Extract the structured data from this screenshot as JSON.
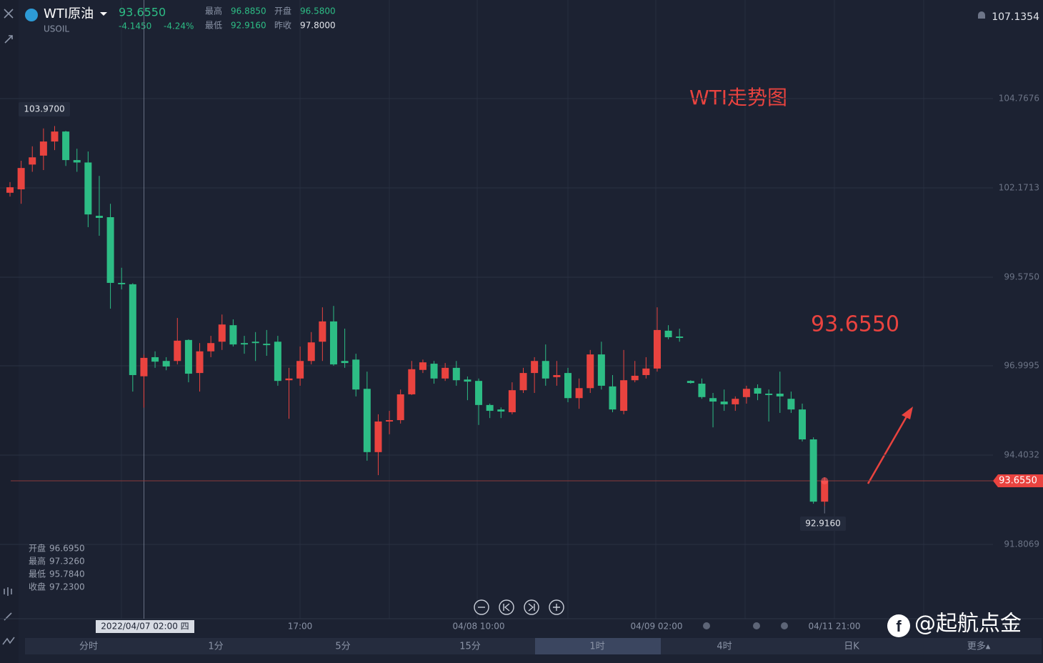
{
  "chart_data": {
    "type": "candlestick",
    "title": "WTI走势图",
    "up_color": "#e9433f",
    "down_color": "#2dbd85",
    "ylim": [
      89.647,
      107.634
    ],
    "yticks": [
      104.7676,
      102.1713,
      {
        "value": 99.575,
        "label": "99.5750"
      },
      96.9995,
      94.4032,
      91.8069
    ],
    "grid": true,
    "open": [
      102.03,
      102.13,
      102.85,
      103.11,
      103.52,
      103.81,
      102.98,
      102.91,
      101.36,
      101.32,
      99.41,
      99.37,
      96.695,
      97.25,
      97.14,
      97.14,
      97.75,
      96.79,
      97.42,
      97.7,
      98.18,
      97.66,
      97.7,
      97.64,
      97.7,
      96.58,
      96.63,
      97.14,
      97.7,
      98.29,
      97.14,
      97.18,
      96.33,
      94.49,
      95.38,
      95.42,
      96.17,
      96.88,
      97.06,
      96.63,
      96.94,
      96.6,
      96.56,
      95.86,
      95.73,
      95.65,
      96.29,
      96.79,
      97.14,
      96.67,
      96.79,
      96.06,
      96.35,
      97.33,
      96.4,
      95.69,
      96.58,
      96.73,
      96.92,
      98.02,
      97.85,
      96.56,
      96.48,
      96.06,
      95.96,
      95.88,
      96.09,
      96.35,
      96.19,
      96.19,
      96.04,
      95.73,
      94.86,
      93.05
    ],
    "high": [
      102.34,
      102.96,
      103.38,
      103.9,
      103.97,
      103.83,
      103.31,
      103.23,
      102.52,
      101.71,
      99.85,
      99.4,
      97.326,
      97.42,
      97.25,
      98.39,
      97.77,
      97.66,
      97.87,
      98.49,
      98.35,
      97.87,
      97.98,
      98.04,
      97.87,
      96.94,
      97.56,
      97.98,
      98.7,
      98.74,
      98.08,
      97.35,
      96.83,
      95.59,
      95.69,
      96.31,
      97.14,
      97.18,
      97.14,
      97.08,
      97.14,
      96.69,
      96.63,
      95.9,
      95.79,
      96.52,
      96.94,
      97.25,
      97.62,
      97.14,
      96.94,
      96.63,
      97.46,
      97.7,
      96.73,
      97.46,
      97.14,
      97.25,
      98.7,
      98.18,
      98.08,
      96.58,
      96.63,
      96.21,
      96.31,
      96.11,
      96.42,
      96.46,
      96.31,
      96.83,
      96.25,
      95.9,
      94.92,
      93.76
    ],
    "low": [
      101.92,
      101.71,
      102.64,
      102.69,
      103.27,
      102.81,
      102.64,
      101.03,
      100.78,
      98.66,
      99.22,
      96.25,
      95.784,
      96.94,
      96.87,
      97.04,
      96.52,
      96.25,
      97.25,
      97.46,
      97.56,
      97.35,
      97.14,
      97.29,
      96.42,
      95.46,
      96.42,
      97.04,
      97.14,
      97.0,
      96.94,
      96.11,
      94.24,
      93.82,
      95.01,
      95.32,
      96.15,
      96.79,
      96.48,
      96.56,
      96.42,
      96.0,
      95.28,
      95.48,
      95.48,
      95.59,
      96.21,
      96.21,
      96.42,
      96.42,
      95.94,
      95.75,
      96.21,
      96.31,
      95.65,
      95.59,
      96.52,
      96.63,
      96.83,
      97.77,
      97.7,
      96.48,
      96.04,
      95.21,
      95.69,
      95.69,
      95.9,
      96.0,
      95.38,
      95.63,
      95.63,
      94.8,
      92.99,
      92.916
    ],
    "close": [
      102.19,
      102.75,
      103.06,
      103.52,
      103.81,
      102.98,
      102.91,
      101.4,
      101.3,
      99.41,
      99.37,
      96.73,
      97.23,
      97.12,
      96.98,
      97.73,
      96.77,
      97.42,
      97.66,
      98.2,
      97.62,
      97.62,
      97.66,
      97.6,
      96.56,
      96.63,
      97.14,
      97.68,
      98.29,
      97.04,
      97.08,
      96.31,
      94.49,
      95.38,
      95.42,
      96.17,
      96.9,
      97.1,
      96.63,
      96.94,
      96.58,
      96.54,
      95.86,
      95.69,
      95.67,
      96.29,
      96.79,
      97.14,
      96.63,
      96.73,
      96.06,
      96.35,
      97.33,
      96.42,
      95.73,
      96.58,
      96.71,
      96.92,
      98.04,
      97.83,
      97.81,
      96.5,
      96.09,
      95.96,
      95.88,
      96.04,
      96.33,
      96.19,
      96.15,
      96.11,
      95.73,
      94.86,
      93.05,
      93.655
    ],
    "last_price": {
      "value": 93.655,
      "label": "93.6550"
    },
    "high_label": {
      "value": 103.97,
      "label": "103.9700"
    },
    "low_label": {
      "value": 92.916,
      "label": "92.9160"
    },
    "alert_price": {
      "value": 107.1354,
      "label": "107.1354"
    },
    "time_labels": [
      "17:00",
      "04/08 10:00",
      "04/09 02:00",
      "04/11 21:00"
    ],
    "crosshair_time": "2022/04/07 02:00 四",
    "crosshair_info": [
      [
        "开盘",
        "96.6950"
      ],
      [
        "最高",
        "97.3260"
      ],
      [
        "最低",
        "95.7840"
      ],
      [
        "收盘",
        "97.2300"
      ]
    ]
  },
  "header": {
    "name": "WTI原油",
    "symbol": "USOIL",
    "change": "-4.1450",
    "change_pct": "-4.24%",
    "stats": [
      [
        "最高",
        "96.8850"
      ],
      [
        "开盘",
        "96.5800"
      ],
      [
        "最低",
        "92.9160"
      ],
      [
        "昨收",
        "97.8000"
      ]
    ]
  },
  "toolbar": {
    "tabs": [
      "分时",
      "1分",
      "5分",
      "15分",
      "1时",
      "4时",
      "日K",
      "更多▴"
    ],
    "active": 4
  },
  "watermark": "@起航点金"
}
